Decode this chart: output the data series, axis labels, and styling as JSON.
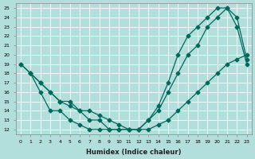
{
  "xlabel": "Humidex (Indice chaleur)",
  "bg_color": "#b2dfdb",
  "line_color": "#00695c",
  "grid_color": "#ffffff",
  "xlim": [
    -0.5,
    23.5
  ],
  "ylim": [
    11.5,
    25.5
  ],
  "yticks": [
    12,
    13,
    14,
    15,
    16,
    17,
    18,
    19,
    20,
    21,
    22,
    23,
    24,
    25
  ],
  "xticks": [
    0,
    1,
    2,
    3,
    4,
    5,
    6,
    7,
    8,
    9,
    10,
    11,
    12,
    13,
    14,
    15,
    16,
    17,
    18,
    19,
    20,
    21,
    22,
    23
  ],
  "line1_x": [
    0,
    1,
    2,
    3,
    4,
    5,
    6,
    7,
    8,
    9,
    10,
    11,
    12,
    13,
    14,
    15,
    16,
    17,
    18,
    19,
    20,
    21,
    22,
    23
  ],
  "line1_y": [
    19,
    18,
    17,
    16,
    15,
    15,
    14,
    13,
    13,
    12,
    12,
    12,
    12,
    13,
    14,
    16,
    18,
    20,
    21,
    23,
    24,
    25,
    23,
    19
  ],
  "line2_x": [
    0,
    1,
    2,
    3,
    4,
    5,
    6,
    7,
    8,
    9,
    10,
    11,
    12,
    13,
    14,
    15,
    16,
    17,
    18,
    19,
    20,
    21,
    22,
    23
  ],
  "line2_y": [
    19,
    18,
    17,
    16,
    15,
    14.5,
    14,
    14,
    13.5,
    13,
    12.5,
    12,
    12,
    12,
    12.5,
    13,
    14,
    15,
    16,
    17,
    18,
    19,
    19.5,
    20
  ],
  "line3_x": [
    1,
    2,
    3,
    4,
    5,
    6,
    7,
    8,
    9,
    10,
    11,
    12,
    13,
    14,
    15,
    16,
    17,
    18,
    19,
    20,
    21,
    22,
    23
  ],
  "line3_y": [
    18,
    16,
    14,
    14,
    13,
    12.5,
    12,
    12,
    12,
    12,
    12,
    12,
    13,
    14.5,
    17,
    20,
    22,
    23,
    24,
    25,
    25,
    24,
    19.5
  ]
}
